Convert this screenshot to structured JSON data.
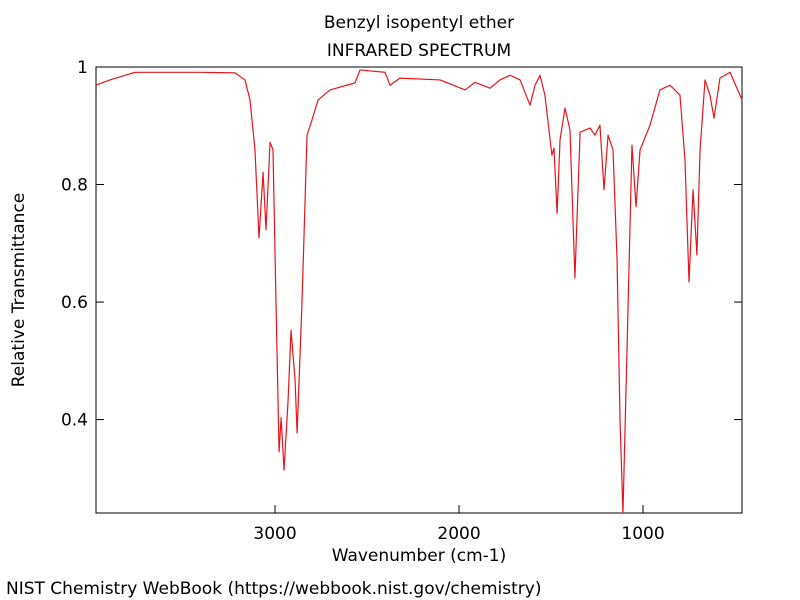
{
  "chart_data": {
    "type": "line",
    "title": "Benzyl isopentyl ether",
    "subtitle": "INFRARED SPECTRUM",
    "x_label": "Wavenumber (cm-1)",
    "y_label": "Relative Transmittance",
    "footer": "NIST Chemistry WebBook (https://webbook.nist.gov/chemistry)",
    "xlim": [
      3973,
      462
    ],
    "ylim": [
      0.241,
      1
    ],
    "xticks": [
      3000,
      2000,
      1000
    ],
    "yticks": [
      0.4,
      0.6,
      0.8,
      1
    ],
    "series": [
      {
        "color": "#e8141c",
        "x": [
          3973,
          3897,
          3761,
          3571,
          3408,
          3217,
          3163,
          3136,
          3109,
          3087,
          3065,
          3049,
          3027,
          3011,
          2995,
          2978,
          2967,
          2951,
          2929,
          2913,
          2891,
          2880,
          2853,
          2826,
          2799,
          2766,
          2701,
          2565,
          2538,
          2402,
          2375,
          2321,
          2103,
          1967,
          1913,
          1832,
          1777,
          1723,
          1668,
          1614,
          1587,
          1560,
          1533,
          1505,
          1495,
          1484,
          1467,
          1451,
          1424,
          1397,
          1370,
          1342,
          1288,
          1261,
          1234,
          1212,
          1190,
          1163,
          1141,
          1125,
          1109,
          1087,
          1060,
          1038,
          1016,
          962,
          908,
          853,
          799,
          772,
          750,
          728,
          707,
          690,
          663,
          636,
          614,
          582,
          527,
          462
        ],
        "values": [
          0.969,
          0.978,
          0.991,
          0.991,
          0.991,
          0.99,
          0.978,
          0.944,
          0.859,
          0.709,
          0.821,
          0.723,
          0.872,
          0.859,
          0.603,
          0.345,
          0.403,
          0.314,
          0.433,
          0.552,
          0.467,
          0.377,
          0.603,
          0.884,
          0.91,
          0.944,
          0.961,
          0.973,
          0.995,
          0.991,
          0.969,
          0.981,
          0.978,
          0.961,
          0.974,
          0.964,
          0.978,
          0.986,
          0.978,
          0.935,
          0.969,
          0.986,
          0.952,
          0.876,
          0.85,
          0.862,
          0.751,
          0.876,
          0.93,
          0.893,
          0.641,
          0.889,
          0.896,
          0.884,
          0.901,
          0.791,
          0.884,
          0.859,
          0.671,
          0.399,
          0.241,
          0.518,
          0.867,
          0.762,
          0.859,
          0.901,
          0.961,
          0.969,
          0.952,
          0.842,
          0.634,
          0.791,
          0.68,
          0.859,
          0.978,
          0.952,
          0.913,
          0.981,
          0.991,
          0.944
        ]
      }
    ]
  }
}
